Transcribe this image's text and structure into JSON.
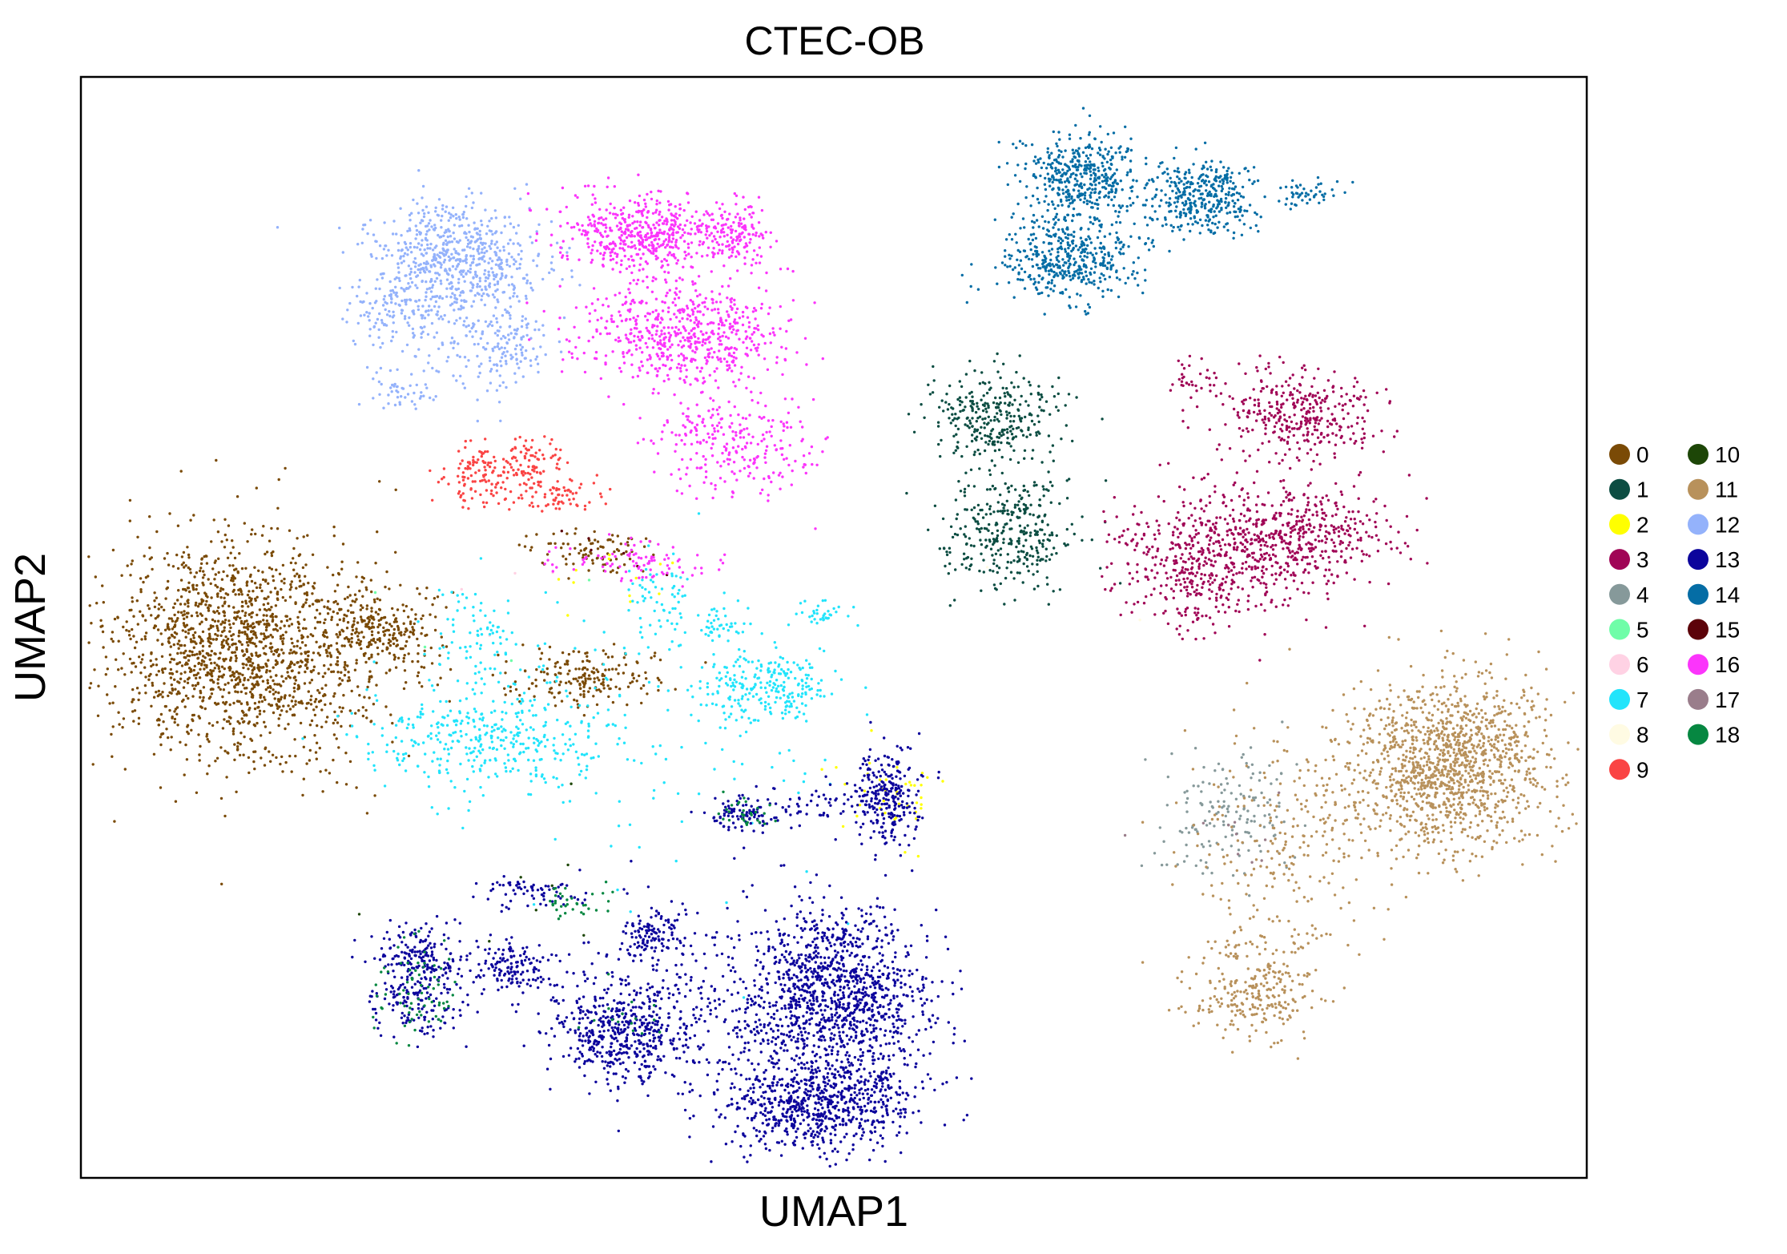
{
  "chart_data": {
    "type": "scatter",
    "title": "CTEC-OB",
    "xlabel": "UMAP1",
    "ylabel": "UMAP2",
    "xlim": [
      0,
      100
    ],
    "ylim": [
      0,
      100
    ],
    "xticks": [],
    "yticks": [],
    "grid": false,
    "legend_position": "right",
    "legend_title": "",
    "series": [
      {
        "label": "0",
        "color": "#7a4a06",
        "clusters": [
          {
            "cx": 10.5,
            "cy": 48,
            "sx": 4.2,
            "sy": 5.2,
            "n": 1600
          },
          {
            "cx": 20.0,
            "cy": 49.5,
            "sx": 1.9,
            "sy": 2.0,
            "n": 260
          },
          {
            "cx": 33.5,
            "cy": 45.5,
            "sx": 2.4,
            "sy": 1.3,
            "n": 190
          },
          {
            "cx": 34.0,
            "cy": 57.0,
            "sx": 2.0,
            "sy": 1.0,
            "n": 90
          }
        ]
      },
      {
        "label": "1",
        "color": "#0c4d42",
        "clusters": [
          {
            "cx": 60.8,
            "cy": 69.0,
            "sx": 2.3,
            "sy": 2.0,
            "n": 300
          },
          {
            "cx": 61.6,
            "cy": 58.7,
            "sx": 2.2,
            "sy": 2.5,
            "n": 340
          }
        ]
      },
      {
        "label": "2",
        "color": "#ffff00",
        "clusters": [
          {
            "cx": 53.5,
            "cy": 35.0,
            "sx": 1.6,
            "sy": 2.2,
            "n": 40
          },
          {
            "cx": 36.0,
            "cy": 55.0,
            "sx": 3.0,
            "sy": 2.0,
            "n": 12
          }
        ]
      },
      {
        "label": "3",
        "color": "#a00556",
        "clusters": [
          {
            "cx": 75.0,
            "cy": 56.0,
            "sx": 3.0,
            "sy": 3.2,
            "n": 560
          },
          {
            "cx": 81.5,
            "cy": 58.5,
            "sx": 2.8,
            "sy": 2.2,
            "n": 380
          },
          {
            "cx": 81.0,
            "cy": 69.5,
            "sx": 2.5,
            "sy": 2.1,
            "n": 340
          },
          {
            "cx": 74.0,
            "cy": 72.5,
            "sx": 0.9,
            "sy": 0.9,
            "n": 35
          }
        ]
      },
      {
        "label": "4",
        "color": "#86999a",
        "clusters": [
          {
            "cx": 76.0,
            "cy": 33.0,
            "sx": 2.4,
            "sy": 3.0,
            "n": 160
          }
        ]
      },
      {
        "label": "5",
        "color": "#6ffda8",
        "clusters": [
          {
            "cx": 27.0,
            "cy": 50.0,
            "sx": 3.0,
            "sy": 3.0,
            "n": 4
          }
        ]
      },
      {
        "label": "6",
        "color": "#ffd2e4",
        "clusters": [
          {
            "cx": 29.0,
            "cy": 52.0,
            "sx": 3.0,
            "sy": 3.0,
            "n": 4
          }
        ]
      },
      {
        "label": "7",
        "color": "#22e4fb",
        "clusters": [
          {
            "cx": 27.0,
            "cy": 40.0,
            "sx": 4.2,
            "sy": 2.3,
            "n": 380
          },
          {
            "cx": 45.3,
            "cy": 44.5,
            "sx": 2.3,
            "sy": 1.6,
            "n": 230
          },
          {
            "cx": 38.5,
            "cy": 52.5,
            "sx": 1.2,
            "sy": 1.8,
            "n": 55
          },
          {
            "cx": 42.5,
            "cy": 50.5,
            "sx": 0.9,
            "sy": 0.8,
            "n": 40
          },
          {
            "cx": 49.0,
            "cy": 51.0,
            "sx": 0.9,
            "sy": 0.7,
            "n": 35
          },
          {
            "cx": 26.5,
            "cy": 49.0,
            "sx": 1.6,
            "sy": 2.6,
            "n": 90
          },
          {
            "cx": 40.0,
            "cy": 42.0,
            "sx": 6.0,
            "sy": 8.0,
            "n": 120
          }
        ]
      },
      {
        "label": "8",
        "color": "#fffbe3",
        "clusters": [
          {
            "cx": 50.0,
            "cy": 50.0,
            "sx": 10.0,
            "sy": 10.0,
            "n": 3
          }
        ]
      },
      {
        "label": "9",
        "color": "#fa4444",
        "clusters": [
          {
            "cx": 26.5,
            "cy": 64.0,
            "sx": 1.4,
            "sy": 1.6,
            "n": 120
          },
          {
            "cx": 29.8,
            "cy": 65.0,
            "sx": 1.1,
            "sy": 1.2,
            "n": 80
          },
          {
            "cx": 31.5,
            "cy": 62.0,
            "sx": 1.5,
            "sy": 0.8,
            "n": 70
          }
        ]
      },
      {
        "label": "10",
        "color": "#1d4607",
        "clusters": [
          {
            "cx": 29.0,
            "cy": 25.0,
            "sx": 4.0,
            "sy": 3.0,
            "n": 8
          }
        ]
      },
      {
        "label": "11",
        "color": "#b8915b",
        "clusters": [
          {
            "cx": 90.7,
            "cy": 37.5,
            "sx": 3.4,
            "sy": 3.9,
            "n": 1300
          },
          {
            "cx": 78.0,
            "cy": 16.5,
            "sx": 1.9,
            "sy": 2.0,
            "n": 240
          },
          {
            "cx": 79.0,
            "cy": 31.0,
            "sx": 3.0,
            "sy": 4.5,
            "n": 200
          },
          {
            "cx": 84.0,
            "cy": 33.5,
            "sx": 1.5,
            "sy": 1.0,
            "n": 30
          },
          {
            "cx": 79.5,
            "cy": 21.5,
            "sx": 2.5,
            "sy": 1.2,
            "n": 40
          }
        ]
      },
      {
        "label": "12",
        "color": "#94b2fb",
        "clusters": [
          {
            "cx": 25.0,
            "cy": 83.5,
            "sx": 2.8,
            "sy": 2.5,
            "n": 650
          },
          {
            "cx": 27.8,
            "cy": 75.5,
            "sx": 1.6,
            "sy": 1.8,
            "n": 150
          },
          {
            "cx": 20.5,
            "cy": 79.0,
            "sx": 1.8,
            "sy": 1.6,
            "n": 90
          },
          {
            "cx": 21.2,
            "cy": 71.5,
            "sx": 0.9,
            "sy": 0.9,
            "n": 40
          },
          {
            "cx": 23.5,
            "cy": 76.0,
            "sx": 2.5,
            "sy": 2.8,
            "n": 90
          }
        ]
      },
      {
        "label": "13",
        "color": "#0c049c",
        "clusters": [
          {
            "cx": 50.0,
            "cy": 17.0,
            "sx": 3.2,
            "sy": 3.6,
            "n": 1150
          },
          {
            "cx": 49.0,
            "cy": 7.0,
            "sx": 3.2,
            "sy": 2.3,
            "n": 800
          },
          {
            "cx": 36.0,
            "cy": 13.5,
            "sx": 2.4,
            "sy": 2.4,
            "n": 520
          },
          {
            "cx": 22.5,
            "cy": 20.0,
            "sx": 1.6,
            "sy": 1.6,
            "n": 200
          },
          {
            "cx": 22.5,
            "cy": 15.5,
            "sx": 1.4,
            "sy": 1.5,
            "n": 120
          },
          {
            "cx": 28.5,
            "cy": 19.0,
            "sx": 1.5,
            "sy": 1.2,
            "n": 140
          },
          {
            "cx": 38.0,
            "cy": 22.0,
            "sx": 1.1,
            "sy": 1.1,
            "n": 120
          },
          {
            "cx": 30.0,
            "cy": 26.0,
            "sx": 1.6,
            "sy": 0.8,
            "n": 70
          },
          {
            "cx": 53.6,
            "cy": 34.5,
            "sx": 1.1,
            "sy": 2.1,
            "n": 260
          },
          {
            "cx": 44.0,
            "cy": 33.0,
            "sx": 1.1,
            "sy": 0.8,
            "n": 90
          },
          {
            "cx": 48.5,
            "cy": 34.0,
            "sx": 2.8,
            "sy": 0.9,
            "n": 60
          },
          {
            "cx": 42.0,
            "cy": 17.0,
            "sx": 3.5,
            "sy": 5.0,
            "n": 160
          }
        ]
      },
      {
        "label": "14",
        "color": "#056da5",
        "clusters": [
          {
            "cx": 66.5,
            "cy": 91.0,
            "sx": 1.9,
            "sy": 2.0,
            "n": 420
          },
          {
            "cx": 65.5,
            "cy": 83.5,
            "sx": 2.4,
            "sy": 1.8,
            "n": 430
          },
          {
            "cx": 74.5,
            "cy": 89.0,
            "sx": 1.9,
            "sy": 1.7,
            "n": 330
          },
          {
            "cx": 81.5,
            "cy": 89.5,
            "sx": 1.0,
            "sy": 0.6,
            "n": 50
          },
          {
            "cx": 70.5,
            "cy": 88.5,
            "sx": 2.5,
            "sy": 2.5,
            "n": 60
          }
        ]
      },
      {
        "label": "15",
        "color": "#5c0209",
        "clusters": [
          {
            "cx": 37.0,
            "cy": 57.0,
            "sx": 3.0,
            "sy": 2.0,
            "n": 6
          }
        ]
      },
      {
        "label": "16",
        "color": "#fb35fb",
        "clusters": [
          {
            "cx": 37.2,
            "cy": 86.0,
            "sx": 2.5,
            "sy": 1.8,
            "n": 480
          },
          {
            "cx": 40.0,
            "cy": 76.5,
            "sx": 3.6,
            "sy": 2.3,
            "n": 620
          },
          {
            "cx": 43.5,
            "cy": 66.5,
            "sx": 2.6,
            "sy": 2.3,
            "n": 260
          },
          {
            "cx": 43.5,
            "cy": 85.5,
            "sx": 1.2,
            "sy": 1.4,
            "n": 160
          },
          {
            "cx": 36.5,
            "cy": 56.0,
            "sx": 2.5,
            "sy": 1.0,
            "n": 90
          }
        ]
      },
      {
        "label": "17",
        "color": "#9a7d8b",
        "clusters": [
          {
            "cx": 76.0,
            "cy": 31.5,
            "sx": 2.0,
            "sy": 2.5,
            "n": 10
          }
        ]
      },
      {
        "label": "18",
        "color": "#068741",
        "clusters": [
          {
            "cx": 22.5,
            "cy": 17.0,
            "sx": 1.5,
            "sy": 2.5,
            "n": 70
          },
          {
            "cx": 33.0,
            "cy": 25.0,
            "sx": 1.4,
            "sy": 0.7,
            "n": 35
          },
          {
            "cx": 44.0,
            "cy": 33.0,
            "sx": 1.0,
            "sy": 0.8,
            "n": 30
          },
          {
            "cx": 36.0,
            "cy": 14.0,
            "sx": 1.5,
            "sy": 1.5,
            "n": 15
          }
        ]
      }
    ]
  }
}
